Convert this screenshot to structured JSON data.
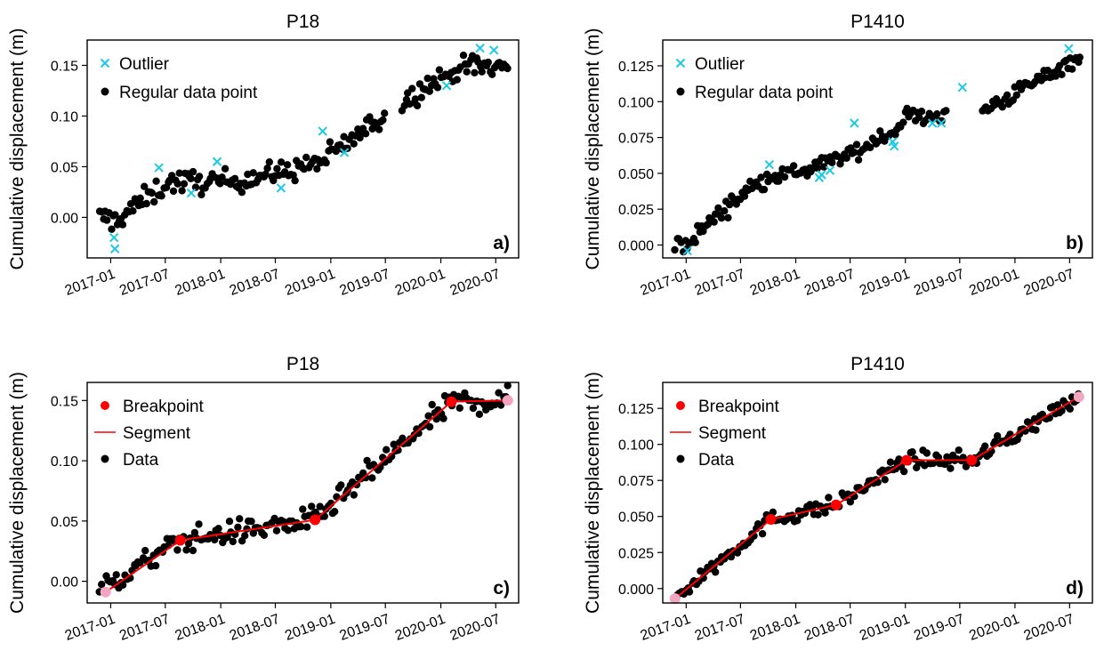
{
  "chart_data": [
    {
      "panel": "a)",
      "type": "scatter",
      "title": "P18",
      "ylabel": "Cumulative displacement (m)",
      "xlim": [
        "2016-10-15",
        "2020-09-15"
      ],
      "ylim": [
        -0.04,
        0.175
      ],
      "xticks": [
        "2017-01",
        "2017-07",
        "2018-01",
        "2018-07",
        "2019-01",
        "2019-07",
        "2020-01",
        "2020-07"
      ],
      "yticks": [
        "0.00",
        "0.05",
        "0.10",
        "0.15"
      ],
      "legend_position": "top-left",
      "series": [
        {
          "name": "Outlier",
          "marker": "x",
          "color": "#1ec8e6",
          "x": [
            "2017-01-12",
            "2017-01-15",
            "2017-06-10",
            "2017-09-25",
            "2017-12-20",
            "2018-07-20",
            "2018-12-05",
            "2019-02-15",
            "2020-01-20",
            "2020-05-10",
            "2020-06-25"
          ],
          "y": [
            -0.02,
            -0.031,
            0.049,
            0.024,
            0.055,
            0.029,
            0.085,
            0.064,
            0.13,
            0.167,
            0.165
          ]
        },
        {
          "name": "Regular data point",
          "marker": "o",
          "color": "#000000",
          "trend": [
            [
              "2016-11-25",
              0.0
            ],
            [
              "2017-01-20",
              -0.003
            ],
            [
              "2017-04-10",
              0.015
            ],
            [
              "2017-07-15",
              0.035
            ],
            [
              "2018-01-15",
              0.035
            ],
            [
              "2018-07-15",
              0.044
            ],
            [
              "2018-12-01",
              0.055
            ],
            [
              "2019-07-10",
              0.103
            ],
            [
              "2019-10-01",
              0.12
            ],
            [
              "2020-02-01",
              0.143
            ],
            [
              "2020-04-15",
              0.15
            ],
            [
              "2020-08-10",
              0.148
            ]
          ],
          "spread": 0.008,
          "count": 210
        }
      ]
    },
    {
      "panel": "b)",
      "type": "scatter",
      "title": "P1410",
      "ylabel": "Cumulative displacement (m)",
      "xlim": [
        "2016-10-15",
        "2020-09-15"
      ],
      "ylim": [
        -0.009,
        0.143
      ],
      "xticks": [
        "2017-01",
        "2017-07",
        "2018-01",
        "2018-07",
        "2019-01",
        "2019-07",
        "2020-01",
        "2020-07"
      ],
      "yticks": [
        "0.000",
        "0.025",
        "0.050",
        "0.075",
        "0.100",
        "0.125"
      ],
      "legend_position": "top-left",
      "series": [
        {
          "name": "Outlier",
          "marker": "x",
          "color": "#1ec8e6",
          "x": [
            "2017-01-05",
            "2017-10-05",
            "2018-03-20",
            "2018-03-28",
            "2018-04-25",
            "2018-07-15",
            "2018-11-20",
            "2018-11-25",
            "2019-04-01",
            "2019-05-01",
            "2019-07-10",
            "2020-06-28"
          ],
          "y": [
            -0.004,
            0.056,
            0.047,
            0.049,
            0.052,
            0.085,
            0.072,
            0.069,
            0.085,
            0.085,
            0.11,
            0.137
          ]
        },
        {
          "name": "Regular data point",
          "marker": "o",
          "color": "#000000",
          "trend": [
            [
              "2016-11-25",
              0.0
            ],
            [
              "2017-01-15",
              0.003
            ],
            [
              "2017-03-15",
              0.015
            ],
            [
              "2017-07-01",
              0.035
            ],
            [
              "2017-10-15",
              0.048
            ],
            [
              "2018-01-15",
              0.05
            ],
            [
              "2018-07-15",
              0.065
            ],
            [
              "2018-12-01",
              0.08
            ],
            [
              "2019-01-01",
              0.09
            ],
            [
              "2019-05-15",
              0.09
            ],
            [
              "2019-09-01",
              0.093
            ],
            [
              "2019-11-15",
              0.1
            ],
            [
              "2020-08-05",
              0.132
            ]
          ],
          "spread": 0.004,
          "count": 200
        }
      ]
    },
    {
      "panel": "c)",
      "type": "scatter",
      "title": "P18",
      "ylabel": "Cumulative displacement (m)",
      "xlim": [
        "2016-10-15",
        "2020-09-15"
      ],
      "ylim": [
        -0.018,
        0.165
      ],
      "xticks": [
        "2017-01",
        "2017-07",
        "2018-01",
        "2018-07",
        "2019-01",
        "2019-07",
        "2020-01",
        "2020-07"
      ],
      "yticks": [
        "0.00",
        "0.05",
        "0.10",
        "0.15"
      ],
      "legend_position": "top-left",
      "legend": [
        "Breakpoint",
        "Segment",
        "Data"
      ],
      "breakpoints": {
        "x": [
          "2016-12-15",
          "2017-08-20",
          "2018-11-10",
          "2020-02-05",
          "2020-08-10"
        ],
        "y": [
          -0.009,
          0.034,
          0.051,
          0.149,
          0.15
        ],
        "color": "#ff0000",
        "endpoint_color": "#f4a6c0"
      },
      "segments_color": "#ff0000",
      "data": {
        "color": "#000000",
        "trend": [
          [
            "2016-11-25",
            -0.008
          ],
          [
            "2017-08-20",
            0.034
          ],
          [
            "2018-11-10",
            0.051
          ],
          [
            "2020-02-05",
            0.148
          ],
          [
            "2020-08-10",
            0.15
          ]
        ],
        "spread": 0.007,
        "count": 190
      }
    },
    {
      "panel": "d)",
      "type": "scatter",
      "title": "P1410",
      "ylabel": "Cumulative displacement (m)",
      "xlim": [
        "2016-10-15",
        "2020-09-15"
      ],
      "ylim": [
        -0.01,
        0.143
      ],
      "xticks": [
        "2017-01",
        "2017-07",
        "2018-01",
        "2018-07",
        "2019-01",
        "2019-07",
        "2020-01",
        "2020-07"
      ],
      "yticks": [
        "0.000",
        "0.025",
        "0.050",
        "0.075",
        "0.100",
        "0.125"
      ],
      "legend_position": "top-left",
      "legend": [
        "Breakpoint",
        "Segment",
        "Data"
      ],
      "breakpoints": {
        "x": [
          "2016-11-25",
          "2017-10-10",
          "2018-05-15",
          "2019-01-05",
          "2019-08-10",
          "2020-08-01"
        ],
        "y": [
          -0.007,
          0.048,
          0.058,
          0.089,
          0.089,
          0.133
        ],
        "color": "#ff0000",
        "endpoint_color": "#f4a6c0"
      },
      "segments_color": "#ff0000",
      "data": {
        "color": "#000000",
        "trend": [
          [
            "2016-11-25",
            -0.006
          ],
          [
            "2017-10-10",
            0.048
          ],
          [
            "2018-05-15",
            0.058
          ],
          [
            "2019-01-05",
            0.089
          ],
          [
            "2019-08-10",
            0.089
          ],
          [
            "2020-08-01",
            0.133
          ]
        ],
        "spread": 0.004,
        "count": 190
      }
    }
  ]
}
